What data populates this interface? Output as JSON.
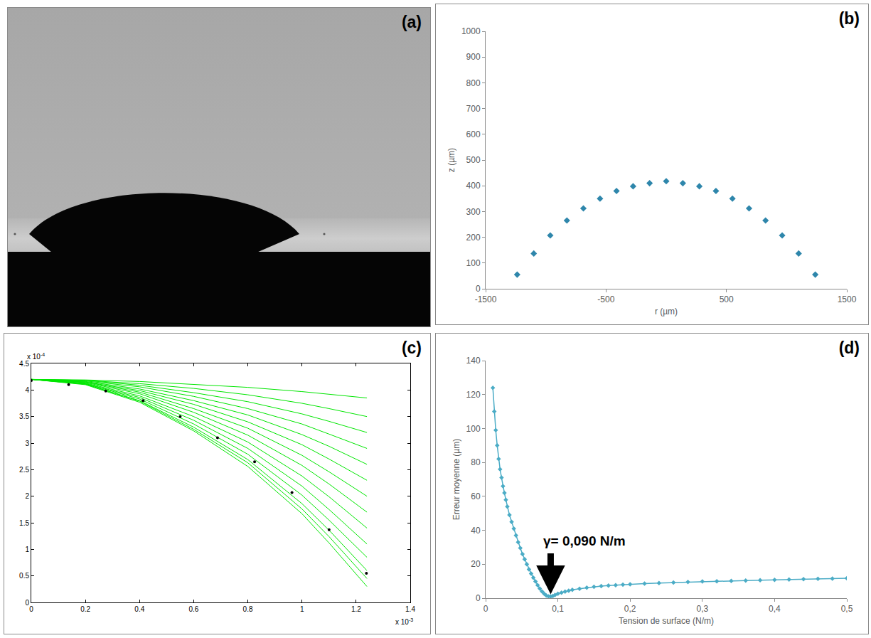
{
  "chart_data": [
    {
      "type": "image",
      "panel": "(a)"
    },
    {
      "type": "scatter",
      "panel": "(b)",
      "x_label": "r (µm)",
      "y_label": "z (µm)",
      "x": [
        -1238,
        -1100,
        -963,
        -825,
        -688,
        -550,
        -413,
        -275,
        -138,
        0,
        138,
        275,
        413,
        550,
        688,
        825,
        963,
        1100,
        1238
      ],
      "values": [
        55,
        137,
        207,
        265,
        312,
        350,
        380,
        398,
        410,
        418,
        410,
        398,
        380,
        350,
        312,
        265,
        207,
        137,
        55
      ],
      "color": "#2e86ab",
      "marker": "diamond",
      "xlim": [
        -1500,
        1500
      ],
      "xticks": [
        -1500,
        -500,
        500,
        1500
      ],
      "ylim": [
        0,
        1000
      ],
      "yticks": [
        0,
        100,
        200,
        300,
        400,
        500,
        600,
        700,
        800,
        900,
        1000
      ],
      "grid": false
    },
    {
      "type": "line",
      "panel": "(c)",
      "xlim": [
        0,
        1.4
      ],
      "xticks": [
        0,
        0.2,
        0.4,
        0.6,
        0.8,
        1,
        1.2,
        1.4
      ],
      "ylim": [
        0,
        4.5
      ],
      "yticks": [
        0,
        0.5,
        1,
        1.5,
        2,
        2.5,
        3,
        3.5,
        4,
        4.5
      ],
      "x_multiplier": {
        "text": "x 10",
        "exponent": "-3"
      },
      "y_multiplier": {
        "text": "x 10",
        "exponent": "-4"
      },
      "grid": false,
      "series": [
        {
          "color": "#00e600",
          "x": [
            0,
            0.2,
            0.4,
            0.6,
            0.8,
            1.0,
            1.1,
            1.24
          ],
          "values": [
            4.2,
            4.19,
            4.16,
            4.11,
            4.05,
            3.97,
            3.92,
            3.85
          ]
        },
        {
          "color": "#00e600",
          "x": [
            0,
            0.2,
            0.4,
            0.6,
            0.8,
            1.0,
            1.1,
            1.24
          ],
          "values": [
            4.2,
            4.18,
            4.12,
            4.03,
            3.91,
            3.75,
            3.65,
            3.5
          ]
        },
        {
          "color": "#00e600",
          "x": [
            0,
            0.2,
            0.4,
            0.6,
            0.8,
            1.0,
            1.1,
            1.24
          ],
          "values": [
            4.2,
            4.18,
            4.09,
            3.95,
            3.78,
            3.55,
            3.41,
            3.2
          ]
        },
        {
          "color": "#00e600",
          "x": [
            0,
            0.2,
            0.4,
            0.6,
            0.8,
            1.0,
            1.1,
            1.24
          ],
          "values": [
            4.2,
            4.17,
            4.06,
            3.88,
            3.65,
            3.36,
            3.17,
            2.9
          ]
        },
        {
          "color": "#00e600",
          "x": [
            0,
            0.2,
            0.4,
            0.6,
            0.8,
            1.0,
            1.1,
            1.24
          ],
          "values": [
            4.2,
            4.16,
            4.02,
            3.8,
            3.53,
            3.16,
            2.94,
            2.6
          ]
        },
        {
          "color": "#00e600",
          "x": [
            0,
            0.2,
            0.4,
            0.6,
            0.8,
            1.0,
            1.1,
            1.24
          ],
          "values": [
            4.2,
            4.15,
            3.99,
            3.73,
            3.4,
            2.97,
            2.7,
            2.3
          ]
        },
        {
          "color": "#00e600",
          "x": [
            0,
            0.2,
            0.4,
            0.6,
            0.8,
            1.0,
            1.1,
            1.24
          ],
          "values": [
            4.2,
            4.15,
            3.96,
            3.65,
            3.28,
            2.77,
            2.46,
            2.0
          ]
        },
        {
          "color": "#00e600",
          "x": [
            0,
            0.2,
            0.4,
            0.6,
            0.8,
            1.0,
            1.1,
            1.24
          ],
          "values": [
            4.2,
            4.14,
            3.93,
            3.58,
            3.15,
            2.58,
            2.23,
            1.7
          ]
        },
        {
          "color": "#00e600",
          "x": [
            0,
            0.2,
            0.4,
            0.6,
            0.8,
            1.0,
            1.1,
            1.24
          ],
          "values": [
            4.2,
            4.13,
            3.89,
            3.5,
            3.02,
            2.38,
            1.99,
            1.4
          ]
        },
        {
          "color": "#00e600",
          "x": [
            0,
            0.2,
            0.4,
            0.6,
            0.8,
            1.0,
            1.1,
            1.24
          ],
          "values": [
            4.2,
            4.12,
            3.86,
            3.43,
            2.9,
            2.19,
            1.75,
            1.1
          ]
        },
        {
          "color": "#00e600",
          "x": [
            0,
            0.2,
            0.4,
            0.6,
            0.8,
            1.0,
            1.1,
            1.24
          ],
          "values": [
            4.2,
            4.12,
            3.83,
            3.36,
            2.79,
            2.02,
            1.55,
            0.85
          ]
        },
        {
          "color": "#00e600",
          "x": [
            0,
            0.2,
            0.4,
            0.6,
            0.8,
            1.0,
            1.1,
            1.24
          ],
          "values": [
            4.2,
            4.11,
            3.8,
            3.3,
            2.69,
            1.86,
            1.36,
            0.6
          ]
        },
        {
          "color": "#00e600",
          "x": [
            0,
            0.2,
            0.4,
            0.6,
            0.8,
            1.0,
            1.1,
            1.24
          ],
          "values": [
            4.2,
            4.11,
            3.79,
            3.26,
            2.63,
            1.76,
            1.24,
            0.45
          ]
        },
        {
          "color": "#00e600",
          "x": [
            0,
            0.2,
            0.4,
            0.6,
            0.8,
            1.0,
            1.1,
            1.24
          ],
          "values": [
            4.2,
            4.1,
            3.77,
            3.23,
            2.56,
            1.67,
            1.12,
            0.3
          ]
        },
        {
          "type": "scatter",
          "color": "#000000",
          "marker": "circle",
          "x": [
            0,
            0.138,
            0.275,
            0.413,
            0.55,
            0.688,
            0.825,
            0.963,
            1.1,
            1.238
          ],
          "values": [
            4.18,
            4.1,
            3.98,
            3.8,
            3.5,
            3.1,
            2.65,
            2.07,
            1.37,
            0.55
          ]
        }
      ]
    },
    {
      "type": "line",
      "panel": "(d)",
      "x_label": "Tension de surface (N/m)",
      "y_label": "Erreur moyenne (µm)",
      "x": [
        0.01,
        0.012,
        0.014,
        0.016,
        0.018,
        0.02,
        0.022,
        0.024,
        0.026,
        0.028,
        0.03,
        0.033,
        0.036,
        0.039,
        0.042,
        0.045,
        0.048,
        0.051,
        0.054,
        0.057,
        0.06,
        0.063,
        0.066,
        0.069,
        0.072,
        0.075,
        0.078,
        0.081,
        0.084,
        0.087,
        0.09,
        0.093,
        0.096,
        0.1,
        0.105,
        0.11,
        0.115,
        0.12,
        0.13,
        0.14,
        0.15,
        0.16,
        0.17,
        0.18,
        0.19,
        0.2,
        0.22,
        0.24,
        0.26,
        0.28,
        0.3,
        0.32,
        0.34,
        0.36,
        0.38,
        0.4,
        0.42,
        0.44,
        0.46,
        0.48,
        0.5
      ],
      "values": [
        124,
        110,
        99,
        90,
        82,
        76,
        71,
        66,
        62,
        58,
        54,
        49,
        45,
        41,
        37,
        33,
        29.5,
        26,
        23,
        20,
        17,
        14.5,
        12,
        9.8,
        7.6,
        5.7,
        4,
        2.6,
        1.6,
        1.1,
        1.0,
        1.3,
        1.9,
        2.6,
        3.3,
        3.9,
        4.4,
        4.9,
        5.6,
        6.2,
        6.7,
        7.1,
        7.4,
        7.7,
        8.0,
        8.2,
        8.6,
        8.9,
        9.2,
        9.5,
        9.8,
        10.0,
        10.2,
        10.4,
        10.6,
        10.8,
        11.0,
        11.2,
        11.4,
        11.5,
        11.7
      ],
      "color": "#4bacc6",
      "marker": "diamond",
      "line_style": "solid",
      "xlim": [
        0,
        0.5
      ],
      "xticks": [
        0,
        {
          "value": 0.1,
          "label": "0,1"
        },
        {
          "value": 0.2,
          "label": "0,2"
        },
        {
          "value": 0.3,
          "label": "0,3"
        },
        {
          "value": 0.4,
          "label": "0,4"
        },
        {
          "value": 0.5,
          "label": "0,5"
        }
      ],
      "ylim": [
        0,
        140
      ],
      "yticks": [
        0,
        20,
        40,
        60,
        80,
        100,
        120,
        140
      ],
      "annotation": "γ= 0,090 N/m",
      "grid": false
    }
  ]
}
